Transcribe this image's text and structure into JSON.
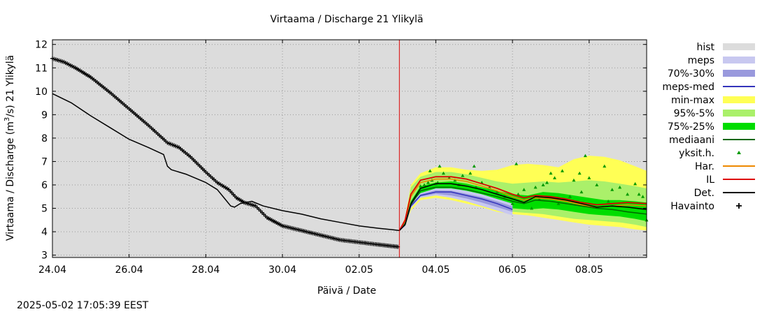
{
  "chart_data": {
    "type": "line",
    "title": "Virtaama / Discharge  21 Ylikylä",
    "xlabel": "Päivä / Date",
    "ylabel_pre": "Virtaama / Discharge (m",
    "ylabel_sup": "3",
    "ylabel_post": "/s)  21 Ylikylä",
    "xlim": [
      0,
      15.5
    ],
    "ylim": [
      2.9,
      12.2
    ],
    "now_x": 9.05,
    "x_ticks": [
      {
        "x": 0,
        "label": "24.04"
      },
      {
        "x": 2,
        "label": "26.04"
      },
      {
        "x": 4,
        "label": "28.04"
      },
      {
        "x": 6,
        "label": "30.04"
      },
      {
        "x": 8,
        "label": "02.05"
      },
      {
        "x": 10,
        "label": "04.05"
      },
      {
        "x": 12,
        "label": "06.05"
      },
      {
        "x": 14,
        "label": "08.05"
      }
    ],
    "y_ticks": [
      3,
      4,
      5,
      6,
      7,
      8,
      9,
      10,
      11,
      12
    ],
    "grid": true,
    "legend_position": "right",
    "colors": {
      "hist": "#dcdcdc",
      "meps": "#c8c8f0",
      "meps_7030": "#9999dd",
      "meps_med": "#3333bb",
      "minmax": "#ffff55",
      "p95_5": "#aaf06a",
      "p75_25": "#00dd00",
      "median": "#006600",
      "members": "#009900",
      "har": "#ee8800",
      "il": "#dd0000",
      "det": "#000000",
      "obs": "#000000",
      "now_line": "#dd0000"
    },
    "legend": [
      {
        "key": "hist",
        "label": "hist",
        "kind": "box"
      },
      {
        "key": "meps",
        "label": "meps",
        "kind": "box"
      },
      {
        "key": "meps_7030",
        "label": "70%-30%",
        "kind": "box"
      },
      {
        "key": "meps_med",
        "label": "meps-med",
        "kind": "line"
      },
      {
        "key": "minmax",
        "label": "min-max",
        "kind": "box"
      },
      {
        "key": "p95_5",
        "label": "95%-5%",
        "kind": "box"
      },
      {
        "key": "p75_25",
        "label": "75%-25%",
        "kind": "box"
      },
      {
        "key": "median",
        "label": "mediaani",
        "kind": "line"
      },
      {
        "key": "members",
        "label": "yksit.h.",
        "kind": "tri"
      },
      {
        "key": "har",
        "label": "Har.",
        "kind": "line"
      },
      {
        "key": "il",
        "label": "IL",
        "kind": "line"
      },
      {
        "key": "det",
        "label": "Det.",
        "kind": "line"
      },
      {
        "key": "obs",
        "label": "Havainto",
        "kind": "plus"
      }
    ],
    "series": [
      {
        "name": "Havainto",
        "key": "obs",
        "x": [
          0,
          0.3,
          0.6,
          1,
          1.5,
          2,
          2.5,
          3,
          3.3,
          3.6,
          4,
          4.3,
          4.6,
          4.8,
          5,
          5.3,
          5.6,
          6,
          6.5,
          7,
          7.5,
          8,
          8.5,
          9.05
        ],
        "y": [
          11.4,
          11.25,
          11.0,
          10.6,
          9.95,
          9.25,
          8.55,
          7.8,
          7.6,
          7.2,
          6.55,
          6.1,
          5.8,
          5.45,
          5.25,
          5.1,
          4.6,
          4.25,
          4.05,
          3.85,
          3.65,
          3.55,
          3.45,
          3.35
        ]
      },
      {
        "name": "Det.",
        "key": "det",
        "x": [
          0,
          0.5,
          1,
          1.5,
          2,
          2.5,
          2.9,
          3.0,
          3.1,
          3.5,
          4,
          4.3,
          4.5,
          4.65,
          4.75,
          4.9,
          5.2,
          5.5,
          6,
          6.5,
          7,
          7.5,
          8,
          8.5,
          8.9,
          9.05,
          9.2,
          9.35,
          9.6,
          10,
          10.4,
          10.8,
          11.2,
          11.6,
          12,
          12.3,
          12.6,
          13,
          13.4,
          13.8,
          14.2,
          14.6,
          15,
          15.5
        ],
        "y": [
          9.9,
          9.5,
          8.95,
          8.45,
          7.95,
          7.6,
          7.3,
          6.8,
          6.65,
          6.45,
          6.1,
          5.8,
          5.4,
          5.1,
          5.05,
          5.2,
          5.3,
          5.1,
          4.9,
          4.75,
          4.55,
          4.4,
          4.25,
          4.15,
          4.08,
          4.05,
          4.3,
          5.2,
          5.85,
          6.05,
          6.05,
          5.95,
          5.8,
          5.6,
          5.4,
          5.25,
          5.5,
          5.45,
          5.35,
          5.2,
          5.05,
          5.1,
          5.05,
          4.95
        ]
      },
      {
        "name": "mediaani",
        "key": "median",
        "x": [
          9.05,
          9.2,
          9.35,
          9.6,
          10,
          10.4,
          10.8,
          11.2,
          11.6,
          12,
          12.3,
          12.6,
          13,
          13.4,
          13.8,
          14.2,
          14.6,
          15,
          15.5
        ],
        "y": [
          4.05,
          4.35,
          5.15,
          5.75,
          5.9,
          5.9,
          5.8,
          5.65,
          5.5,
          5.3,
          5.2,
          5.35,
          5.3,
          5.2,
          5.1,
          5.0,
          4.95,
          4.85,
          4.75
        ]
      },
      {
        "name": "IL",
        "key": "il",
        "x": [
          9.05,
          9.2,
          9.35,
          9.6,
          10,
          10.4,
          10.8,
          11.2,
          11.6,
          12,
          12.3,
          12.6,
          13,
          13.4,
          13.8,
          14.2,
          14.6,
          15,
          15.5
        ],
        "y": [
          4.05,
          4.5,
          5.6,
          6.2,
          6.35,
          6.35,
          6.25,
          6.05,
          5.85,
          5.6,
          5.45,
          5.55,
          5.5,
          5.4,
          5.25,
          5.15,
          5.2,
          5.25,
          5.2
        ]
      },
      {
        "name": "Har.",
        "key": "har",
        "x": [
          9.05,
          9.2,
          9.35,
          9.6,
          10,
          10.4,
          10.8,
          11.2,
          11.6,
          12,
          12.3,
          12.6,
          13,
          13.4,
          13.8,
          14.2,
          14.6,
          15,
          15.5
        ],
        "y": [
          4.05,
          4.45,
          5.5,
          6.1,
          6.25,
          6.25,
          6.15,
          5.95,
          5.75,
          5.5,
          5.35,
          5.45,
          5.4,
          5.3,
          5.15,
          5.05,
          5.1,
          5.15,
          5.1
        ]
      },
      {
        "name": "meps-med",
        "key": "meps_med",
        "x": [
          9.05,
          9.2,
          9.35,
          9.6,
          10,
          10.4,
          10.8,
          11.2,
          11.6,
          12
        ],
        "y": [
          4.05,
          4.3,
          5.1,
          5.55,
          5.7,
          5.7,
          5.55,
          5.4,
          5.2,
          4.95
        ]
      }
    ],
    "bands": [
      {
        "name": "min-max",
        "key": "minmax",
        "x": [
          9.05,
          9.2,
          9.35,
          9.6,
          10,
          10.4,
          10.8,
          11.2,
          11.6,
          12,
          12.4,
          12.8,
          13.2,
          13.6,
          14,
          14.4,
          14.8,
          15.2,
          15.5
        ],
        "lo": [
          4.05,
          4.2,
          4.9,
          5.35,
          5.45,
          5.35,
          5.2,
          5.05,
          4.85,
          4.75,
          4.7,
          4.6,
          4.5,
          4.4,
          4.3,
          4.25,
          4.2,
          4.1,
          4.05
        ],
        "hi": [
          4.05,
          4.6,
          6.0,
          6.5,
          6.75,
          6.75,
          6.65,
          6.6,
          6.65,
          6.85,
          6.9,
          6.85,
          6.75,
          7.1,
          7.25,
          7.2,
          7.05,
          6.8,
          6.6
        ]
      },
      {
        "name": "95%-5%",
        "key": "p95_5",
        "x": [
          9.05,
          9.2,
          9.35,
          9.6,
          10,
          10.4,
          10.8,
          11.2,
          11.6,
          12,
          12.4,
          12.8,
          13.2,
          13.6,
          14,
          14.4,
          14.8,
          15.2,
          15.5
        ],
        "lo": [
          4.05,
          4.25,
          5.0,
          5.45,
          5.55,
          5.5,
          5.35,
          5.2,
          5.0,
          4.85,
          4.8,
          4.75,
          4.65,
          4.55,
          4.5,
          4.45,
          4.4,
          4.3,
          4.2
        ],
        "hi": [
          4.05,
          4.55,
          5.9,
          6.35,
          6.55,
          6.55,
          6.45,
          6.3,
          6.15,
          6.05,
          6.1,
          6.15,
          6.1,
          6.15,
          6.2,
          6.15,
          6.05,
          5.95,
          5.85
        ]
      },
      {
        "name": "75%-25%",
        "key": "p75_25",
        "x": [
          9.05,
          9.2,
          9.35,
          9.6,
          10,
          10.4,
          10.8,
          11.2,
          11.6,
          12,
          12.4,
          12.8,
          13.2,
          13.6,
          14,
          14.4,
          14.8,
          15.2,
          15.5
        ],
        "lo": [
          4.05,
          4.3,
          5.05,
          5.6,
          5.7,
          5.65,
          5.5,
          5.35,
          5.15,
          5.0,
          4.95,
          5.0,
          4.95,
          4.85,
          4.75,
          4.7,
          4.65,
          4.55,
          4.45
        ],
        "hi": [
          4.05,
          4.45,
          5.3,
          5.95,
          6.1,
          6.15,
          6.05,
          5.9,
          5.75,
          5.6,
          5.55,
          5.7,
          5.65,
          5.55,
          5.45,
          5.35,
          5.35,
          5.3,
          5.25
        ]
      },
      {
        "name": "meps",
        "key": "meps",
        "x": [
          9.05,
          9.2,
          9.35,
          9.6,
          10,
          10.4,
          10.8,
          11.2,
          11.6,
          12
        ],
        "lo": [
          4.05,
          4.2,
          5.0,
          5.45,
          5.55,
          5.45,
          5.3,
          5.1,
          4.9,
          4.7
        ],
        "hi": [
          4.05,
          4.4,
          5.2,
          5.65,
          5.85,
          5.85,
          5.75,
          5.6,
          5.4,
          5.2
        ]
      },
      {
        "name": "70%-30%",
        "key": "meps_7030",
        "x": [
          9.05,
          9.2,
          9.35,
          9.6,
          10,
          10.4,
          10.8,
          11.2,
          11.6,
          12
        ],
        "lo": [
          4.05,
          4.25,
          5.05,
          5.5,
          5.62,
          5.55,
          5.42,
          5.25,
          5.05,
          4.85
        ],
        "hi": [
          4.05,
          4.35,
          5.15,
          5.6,
          5.77,
          5.75,
          5.62,
          5.48,
          5.3,
          5.08
        ]
      }
    ],
    "members": {
      "x": [
        9.7,
        9.8,
        9.9,
        10.0,
        10.1,
        9.85,
        10.2,
        10.35,
        10.5,
        10.7,
        10.9,
        11.0,
        11.2,
        11.4,
        11.6,
        11.8,
        12.0,
        12.1,
        12.3,
        12.5,
        12.6,
        12.8,
        12.9,
        13.0,
        13.1,
        13.3,
        13.5,
        13.6,
        13.75,
        13.9,
        14.0,
        14.2,
        14.4,
        14.6,
        14.8,
        15.0,
        15.2,
        15.4,
        15.5,
        9.6,
        10.05,
        10.6,
        11.05,
        12.15,
        12.7,
        13.2,
        13.8,
        14.5,
        15.3
      ],
      "y": [
        6.0,
        6.1,
        6.2,
        6.05,
        6.8,
        6.6,
        6.5,
        6.3,
        6.2,
        6.4,
        6.5,
        6.8,
        6.1,
        5.9,
        5.7,
        5.5,
        5.2,
        6.9,
        5.8,
        5.0,
        5.9,
        6.0,
        6.1,
        6.5,
        6.3,
        6.6,
        5.5,
        6.2,
        6.5,
        7.25,
        6.3,
        6.0,
        6.8,
        5.8,
        5.9,
        5.6,
        6.05,
        5.5,
        4.5,
        5.95,
        6.1,
        6.0,
        5.9,
        5.6,
        5.4,
        5.2,
        5.7,
        5.3,
        5.6
      ]
    }
  },
  "footer": {
    "timestamp": "2025-05-02 17:05:39 EEST"
  }
}
